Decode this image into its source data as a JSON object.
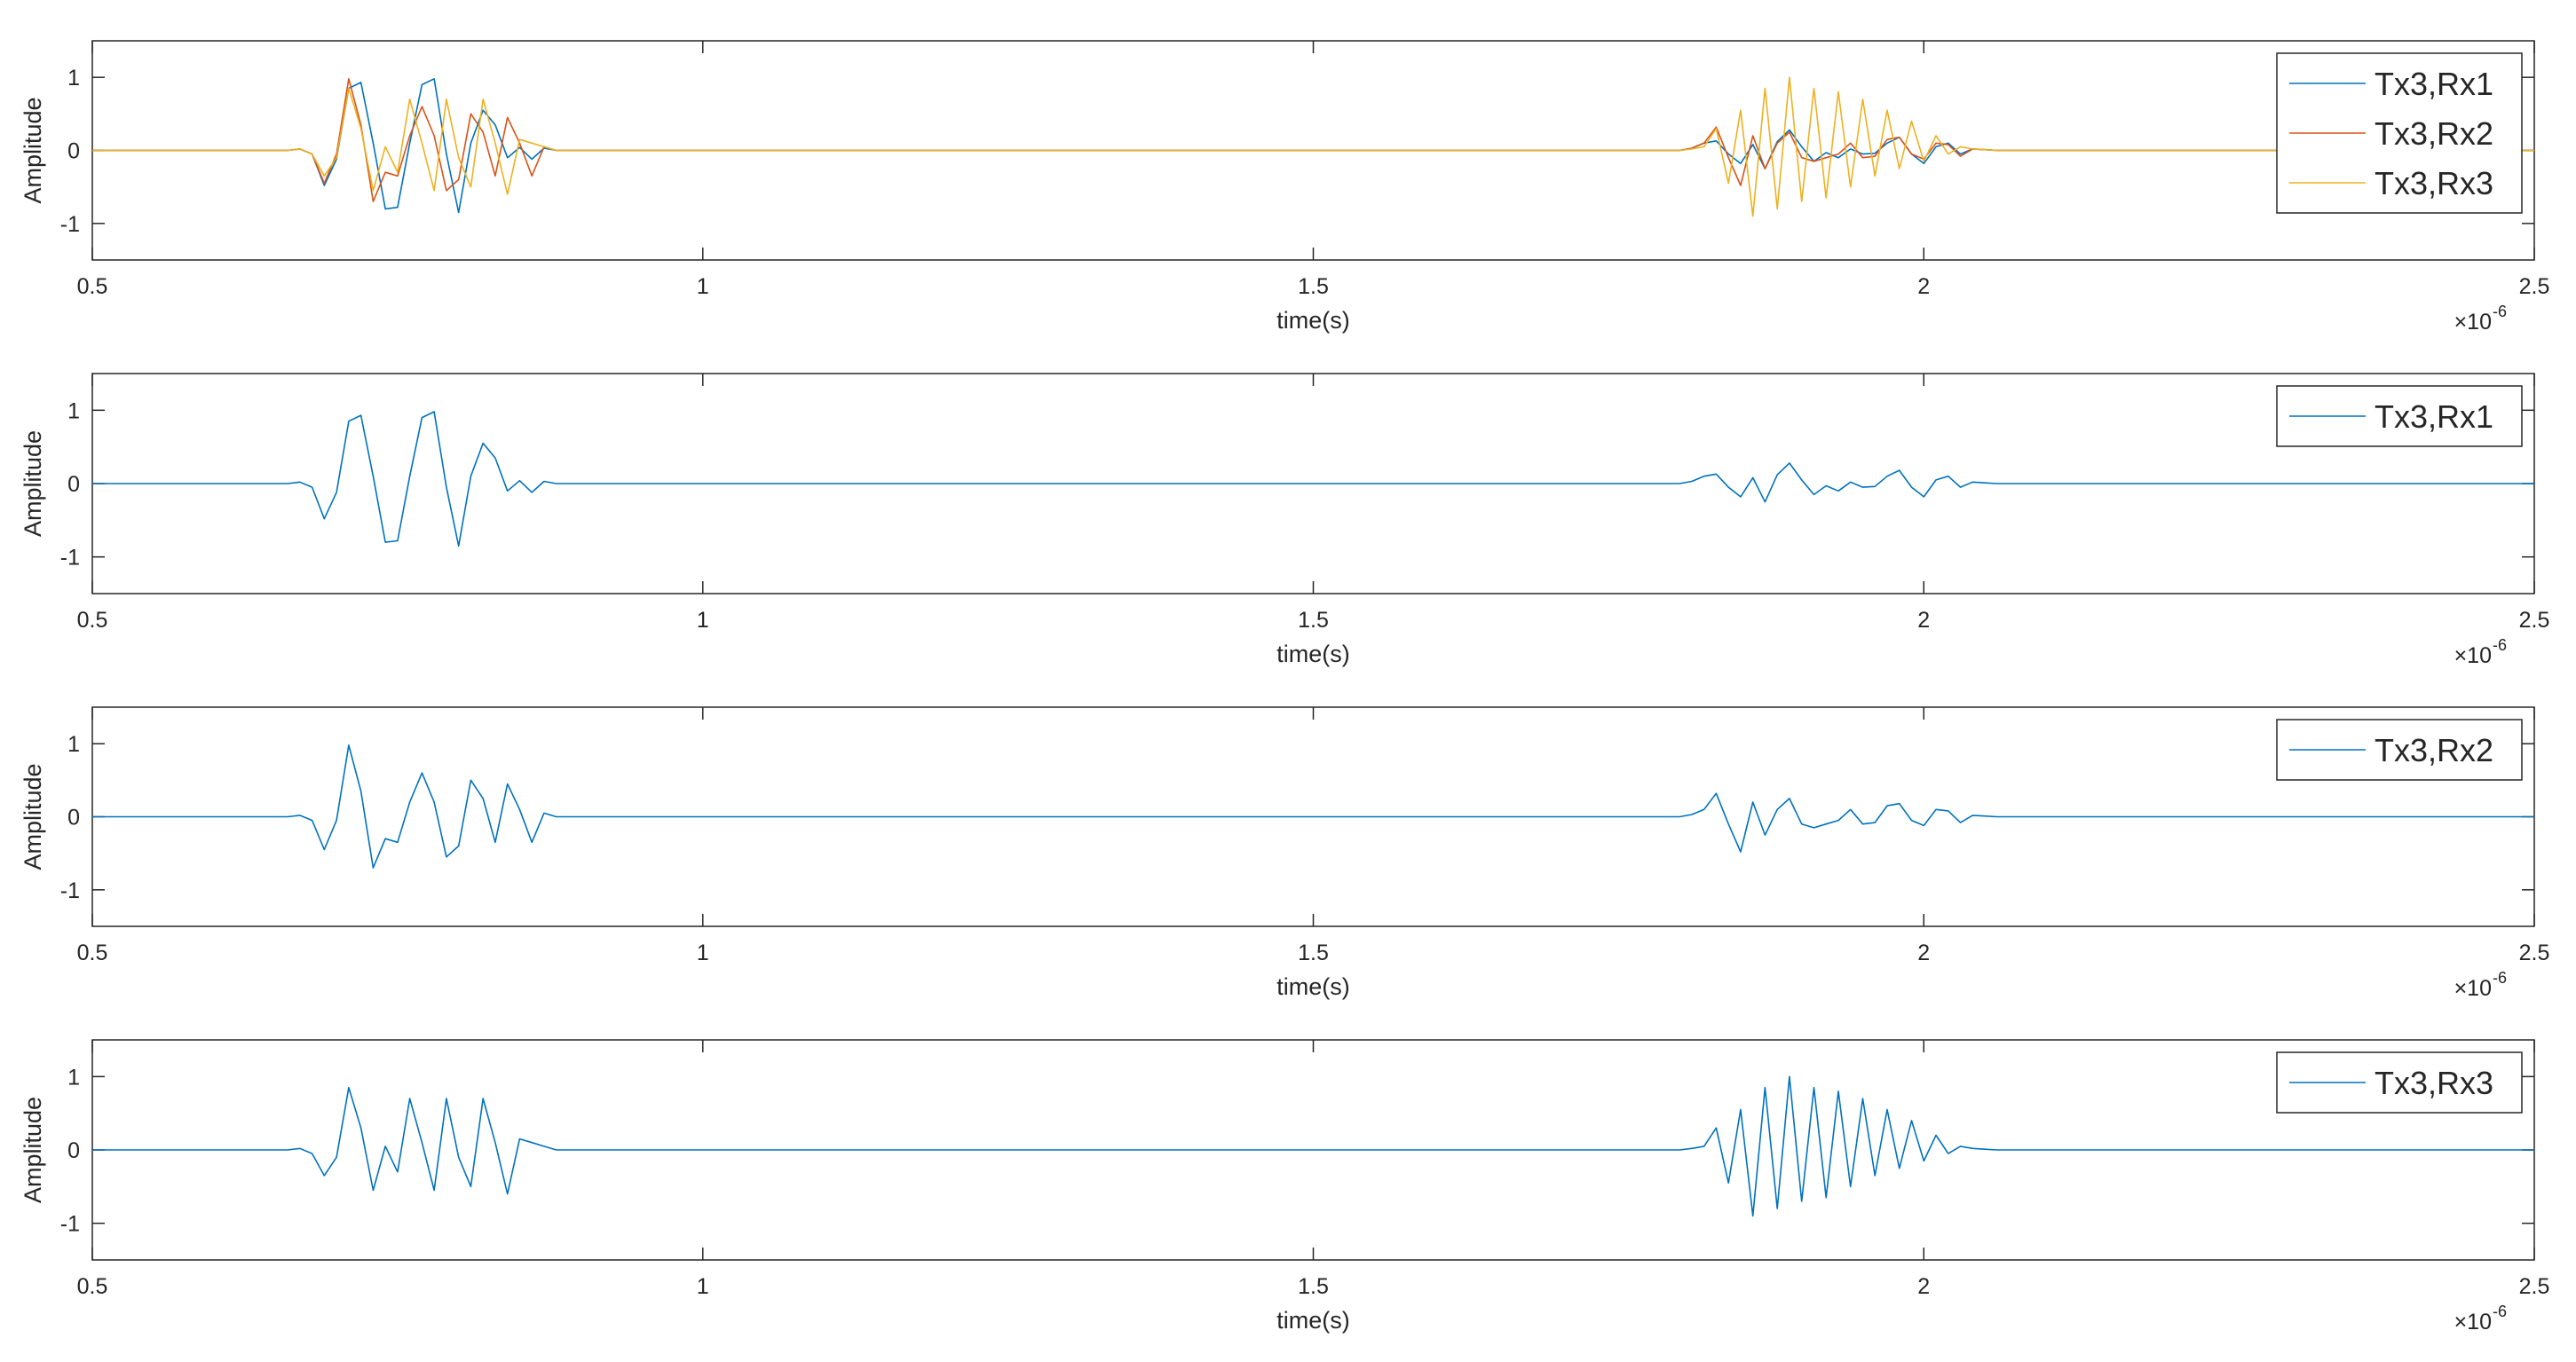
{
  "colors": {
    "series1": "#0072BD",
    "series2": "#D95319",
    "series3": "#EDB120",
    "axis": "#262626",
    "grid": "#262626"
  },
  "chart_data": [
    {
      "type": "line",
      "xlabel": "time(s)",
      "ylabel": "Amplitude",
      "x_exponent_label": "×10",
      "x_exponent_power": "-6",
      "x_scale": 1e-06,
      "xlim": [
        0.5,
        2.5
      ],
      "ylim": [
        -1.5,
        1.5
      ],
      "xticks": [
        0.5,
        1,
        1.5,
        2,
        2.5
      ],
      "xtick_labels": [
        "0.5",
        "1",
        "1.5",
        "2",
        "2.5"
      ],
      "yticks": [
        1,
        0,
        -1
      ],
      "ytick_labels": [
        "1",
        "0",
        "-1"
      ],
      "grid": false,
      "legend": "top-right",
      "series": [
        {
          "name": "Tx3,Rx1",
          "color_key": "series1",
          "x": [
            0.5,
            0.66,
            0.67,
            0.68,
            0.69,
            0.7,
            0.71,
            0.72,
            0.73,
            0.74,
            0.75,
            0.76,
            0.77,
            0.78,
            0.79,
            0.8,
            0.81,
            0.82,
            0.83,
            0.84,
            0.85,
            0.86,
            0.87,
            0.88,
            1.8,
            1.81,
            1.82,
            1.83,
            1.84,
            1.85,
            1.86,
            1.87,
            1.88,
            1.89,
            1.9,
            1.91,
            1.92,
            1.93,
            1.94,
            1.95,
            1.96,
            1.97,
            1.98,
            1.99,
            2.0,
            2.01,
            2.02,
            2.03,
            2.04,
            2.05,
            2.06,
            2.5
          ],
          "y": [
            0,
            0,
            0.02,
            -0.05,
            -0.48,
            -0.12,
            0.85,
            0.93,
            0.1,
            -0.8,
            -0.78,
            0.1,
            0.9,
            0.98,
            -0.05,
            -0.85,
            0.1,
            0.55,
            0.35,
            -0.1,
            0.04,
            -0.12,
            0.03,
            0,
            0,
            0.03,
            0.1,
            0.13,
            -0.05,
            -0.18,
            0.08,
            -0.25,
            0.12,
            0.28,
            0.05,
            -0.15,
            -0.03,
            -0.1,
            0.02,
            -0.05,
            -0.04,
            0.1,
            0.18,
            -0.05,
            -0.18,
            0.05,
            0.1,
            -0.05,
            0.02,
            0.01,
            0,
            0
          ]
        },
        {
          "name": "Tx3,Rx2",
          "color_key": "series2",
          "x": [
            0.5,
            0.66,
            0.67,
            0.68,
            0.69,
            0.7,
            0.71,
            0.72,
            0.73,
            0.74,
            0.75,
            0.76,
            0.77,
            0.78,
            0.79,
            0.8,
            0.81,
            0.82,
            0.83,
            0.84,
            0.85,
            0.86,
            0.87,
            0.88,
            1.8,
            1.81,
            1.82,
            1.83,
            1.84,
            1.85,
            1.86,
            1.87,
            1.88,
            1.89,
            1.9,
            1.91,
            1.92,
            1.93,
            1.94,
            1.95,
            1.96,
            1.97,
            1.98,
            1.99,
            2.0,
            2.01,
            2.02,
            2.03,
            2.04,
            2.05,
            2.06,
            2.5
          ],
          "y": [
            0,
            0,
            0.02,
            -0.05,
            -0.45,
            -0.05,
            0.98,
            0.35,
            -0.7,
            -0.3,
            -0.35,
            0.2,
            0.6,
            0.2,
            -0.55,
            -0.4,
            0.5,
            0.25,
            -0.35,
            0.45,
            0.1,
            -0.35,
            0.05,
            0,
            0,
            0.03,
            0.1,
            0.32,
            -0.1,
            -0.48,
            0.2,
            -0.25,
            0.1,
            0.25,
            -0.1,
            -0.15,
            -0.1,
            -0.05,
            0.1,
            -0.1,
            -0.08,
            0.15,
            0.18,
            -0.05,
            -0.12,
            0.1,
            0.08,
            -0.08,
            0.02,
            0.01,
            0,
            0
          ]
        },
        {
          "name": "Tx3,Rx3",
          "color_key": "series3",
          "x": [
            0.5,
            0.66,
            0.67,
            0.68,
            0.69,
            0.7,
            0.71,
            0.72,
            0.73,
            0.74,
            0.75,
            0.76,
            0.77,
            0.78,
            0.79,
            0.8,
            0.81,
            0.82,
            0.83,
            0.84,
            0.85,
            0.86,
            0.87,
            0.88,
            1.8,
            1.81,
            1.82,
            1.83,
            1.84,
            1.85,
            1.86,
            1.87,
            1.88,
            1.89,
            1.9,
            1.91,
            1.92,
            1.93,
            1.94,
            1.95,
            1.96,
            1.97,
            1.98,
            1.99,
            2.0,
            2.01,
            2.02,
            2.03,
            2.04,
            2.05,
            2.06,
            2.5
          ],
          "y": [
            0,
            0,
            0.02,
            -0.05,
            -0.35,
            -0.1,
            0.85,
            0.3,
            -0.55,
            0.05,
            -0.3,
            0.7,
            0.1,
            -0.55,
            0.7,
            -0.1,
            -0.5,
            0.7,
            0.1,
            -0.6,
            0.15,
            0.1,
            0.05,
            0,
            0,
            0.02,
            0.05,
            0.3,
            -0.45,
            0.55,
            -0.9,
            0.85,
            -0.8,
            1.0,
            -0.7,
            0.85,
            -0.65,
            0.8,
            -0.5,
            0.7,
            -0.35,
            0.55,
            -0.25,
            0.4,
            -0.15,
            0.2,
            -0.05,
            0.05,
            0.02,
            0.01,
            0,
            0
          ]
        }
      ]
    },
    {
      "type": "line",
      "xlabel": "time(s)",
      "ylabel": "Amplitude",
      "x_exponent_label": "×10",
      "x_exponent_power": "-6",
      "x_scale": 1e-06,
      "xlim": [
        0.5,
        2.5
      ],
      "ylim": [
        -1.5,
        1.5
      ],
      "xticks": [
        0.5,
        1,
        1.5,
        2,
        2.5
      ],
      "xtick_labels": [
        "0.5",
        "1",
        "1.5",
        "2",
        "2.5"
      ],
      "yticks": [
        1,
        0,
        -1
      ],
      "ytick_labels": [
        "1",
        "0",
        "-1"
      ],
      "grid": false,
      "legend": "top-right",
      "series": [
        {
          "name": "Tx3,Rx1",
          "color_key": "series1",
          "x": [
            0.5,
            0.66,
            0.67,
            0.68,
            0.69,
            0.7,
            0.71,
            0.72,
            0.73,
            0.74,
            0.75,
            0.76,
            0.77,
            0.78,
            0.79,
            0.8,
            0.81,
            0.82,
            0.83,
            0.84,
            0.85,
            0.86,
            0.87,
            0.88,
            1.8,
            1.81,
            1.82,
            1.83,
            1.84,
            1.85,
            1.86,
            1.87,
            1.88,
            1.89,
            1.9,
            1.91,
            1.92,
            1.93,
            1.94,
            1.95,
            1.96,
            1.97,
            1.98,
            1.99,
            2.0,
            2.01,
            2.02,
            2.03,
            2.04,
            2.05,
            2.06,
            2.5
          ],
          "y": [
            0,
            0,
            0.02,
            -0.05,
            -0.48,
            -0.12,
            0.85,
            0.93,
            0.1,
            -0.8,
            -0.78,
            0.1,
            0.9,
            0.98,
            -0.05,
            -0.85,
            0.1,
            0.55,
            0.35,
            -0.1,
            0.04,
            -0.12,
            0.03,
            0,
            0,
            0.03,
            0.1,
            0.13,
            -0.05,
            -0.18,
            0.08,
            -0.25,
            0.12,
            0.28,
            0.05,
            -0.15,
            -0.03,
            -0.1,
            0.02,
            -0.05,
            -0.04,
            0.1,
            0.18,
            -0.05,
            -0.18,
            0.05,
            0.1,
            -0.05,
            0.02,
            0.01,
            0,
            0
          ]
        }
      ]
    },
    {
      "type": "line",
      "xlabel": "time(s)",
      "ylabel": "Amplitude",
      "x_exponent_label": "×10",
      "x_exponent_power": "-6",
      "x_scale": 1e-06,
      "xlim": [
        0.5,
        2.5
      ],
      "ylim": [
        -1.5,
        1.5
      ],
      "xticks": [
        0.5,
        1,
        1.5,
        2,
        2.5
      ],
      "xtick_labels": [
        "0.5",
        "1",
        "1.5",
        "2",
        "2.5"
      ],
      "yticks": [
        1,
        0,
        -1
      ],
      "ytick_labels": [
        "1",
        "0",
        "-1"
      ],
      "grid": false,
      "legend": "top-right",
      "series": [
        {
          "name": "Tx3,Rx2",
          "color_key": "series1",
          "x": [
            0.5,
            0.66,
            0.67,
            0.68,
            0.69,
            0.7,
            0.71,
            0.72,
            0.73,
            0.74,
            0.75,
            0.76,
            0.77,
            0.78,
            0.79,
            0.8,
            0.81,
            0.82,
            0.83,
            0.84,
            0.85,
            0.86,
            0.87,
            0.88,
            1.8,
            1.81,
            1.82,
            1.83,
            1.84,
            1.85,
            1.86,
            1.87,
            1.88,
            1.89,
            1.9,
            1.91,
            1.92,
            1.93,
            1.94,
            1.95,
            1.96,
            1.97,
            1.98,
            1.99,
            2.0,
            2.01,
            2.02,
            2.03,
            2.04,
            2.05,
            2.06,
            2.5
          ],
          "y": [
            0,
            0,
            0.02,
            -0.05,
            -0.45,
            -0.05,
            0.98,
            0.35,
            -0.7,
            -0.3,
            -0.35,
            0.2,
            0.6,
            0.2,
            -0.55,
            -0.4,
            0.5,
            0.25,
            -0.35,
            0.45,
            0.1,
            -0.35,
            0.05,
            0,
            0,
            0.03,
            0.1,
            0.32,
            -0.1,
            -0.48,
            0.2,
            -0.25,
            0.1,
            0.25,
            -0.1,
            -0.15,
            -0.1,
            -0.05,
            0.1,
            -0.1,
            -0.08,
            0.15,
            0.18,
            -0.05,
            -0.12,
            0.1,
            0.08,
            -0.08,
            0.02,
            0.01,
            0,
            0
          ]
        }
      ]
    },
    {
      "type": "line",
      "xlabel": "time(s)",
      "ylabel": "Amplitude",
      "x_exponent_label": "×10",
      "x_exponent_power": "-6",
      "x_scale": 1e-06,
      "xlim": [
        0.5,
        2.5
      ],
      "ylim": [
        -1.5,
        1.5
      ],
      "xticks": [
        0.5,
        1,
        1.5,
        2,
        2.5
      ],
      "xtick_labels": [
        "0.5",
        "1",
        "1.5",
        "2",
        "2.5"
      ],
      "yticks": [
        1,
        0,
        -1
      ],
      "ytick_labels": [
        "1",
        "0",
        "-1"
      ],
      "grid": false,
      "legend": "top-right",
      "series": [
        {
          "name": "Tx3,Rx3",
          "color_key": "series1",
          "x": [
            0.5,
            0.66,
            0.67,
            0.68,
            0.69,
            0.7,
            0.71,
            0.72,
            0.73,
            0.74,
            0.75,
            0.76,
            0.77,
            0.78,
            0.79,
            0.8,
            0.81,
            0.82,
            0.83,
            0.84,
            0.85,
            0.86,
            0.87,
            0.88,
            1.8,
            1.81,
            1.82,
            1.83,
            1.84,
            1.85,
            1.86,
            1.87,
            1.88,
            1.89,
            1.9,
            1.91,
            1.92,
            1.93,
            1.94,
            1.95,
            1.96,
            1.97,
            1.98,
            1.99,
            2.0,
            2.01,
            2.02,
            2.03,
            2.04,
            2.05,
            2.06,
            2.5
          ],
          "y": [
            0,
            0,
            0.02,
            -0.05,
            -0.35,
            -0.1,
            0.85,
            0.3,
            -0.55,
            0.05,
            -0.3,
            0.7,
            0.1,
            -0.55,
            0.7,
            -0.1,
            -0.5,
            0.7,
            0.1,
            -0.6,
            0.15,
            0.1,
            0.05,
            0,
            0,
            0.02,
            0.05,
            0.3,
            -0.45,
            0.55,
            -0.9,
            0.85,
            -0.8,
            1.0,
            -0.7,
            0.85,
            -0.65,
            0.8,
            -0.5,
            0.7,
            -0.35,
            0.55,
            -0.25,
            0.4,
            -0.15,
            0.2,
            -0.05,
            0.05,
            0.02,
            0.01,
            0,
            0
          ]
        }
      ]
    }
  ]
}
